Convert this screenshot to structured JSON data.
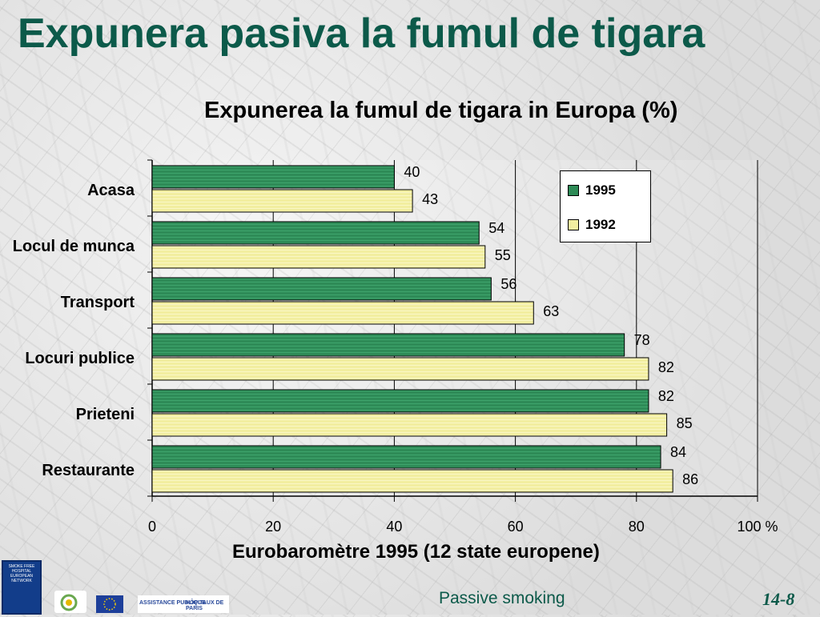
{
  "slide_title": "Expunera  pasiva la fumul de tigara",
  "footer": {
    "text": "Passive smoking",
    "page": "14-8"
  },
  "colors": {
    "title": "#0c5a4a",
    "series_1995": "#2e8b57",
    "series_1992": "#f2eea0"
  },
  "logos": {
    "sfh_text": "SMOKE FREE HOSPITAL EUROPEAN NETWORK",
    "aphp_left": "ASSISTANCE PUBLIQUE",
    "aphp_right": "HÔPITAUX DE PARIS"
  },
  "chart_data": {
    "type": "bar",
    "orientation": "horizontal",
    "title": "Expunerea la fumul de tigara in Europa (%)",
    "xlabel": "Eurobaromètre 1995 (12 state europene)",
    "ylabel": "",
    "categories": [
      "Acasa",
      "Locul de munca",
      "Transport",
      "Locuri publice",
      "Prieteni",
      "Restaurante"
    ],
    "series": [
      {
        "name": "1995",
        "values": [
          40,
          54,
          56,
          78,
          82,
          84
        ],
        "color": "#2e8b57"
      },
      {
        "name": "1992",
        "values": [
          43,
          55,
          63,
          82,
          85,
          86
        ],
        "color": "#f2eea0"
      }
    ],
    "xlim": [
      0,
      100
    ],
    "xticks": [
      "0",
      "20",
      "40",
      "60",
      "80",
      "100 %"
    ],
    "grid": true,
    "legend": "top-right"
  }
}
